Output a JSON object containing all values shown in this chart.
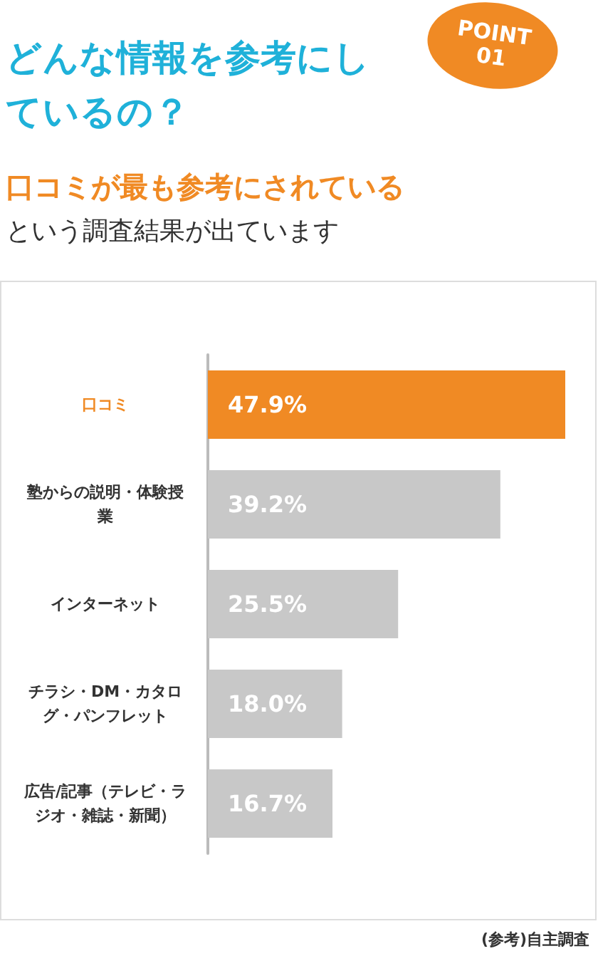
{
  "chart_data": {
    "type": "bar",
    "orientation": "horizontal",
    "title": "どんな情報を参考にしているの？",
    "subtitle": "口コミが最も参考にされている",
    "annotations": [
      "POINT\n01",
      "という調査結果が出ています",
      "(参考)自主調査"
    ],
    "categories": [
      "口コミ",
      "塾からの説明・体験授業",
      "インターネット",
      "チラシ・DM・カタログ・パンフレット",
      "広告/記事（テレビ・ラジオ・雑誌・新聞）"
    ],
    "values": [
      47.9,
      39.2,
      25.5,
      18.0,
      16.7
    ],
    "value_labels": [
      "47.9%",
      "39.2%",
      "25.5%",
      "18.0%",
      "16.7%"
    ],
    "colors": [
      "#f08a24",
      "#c8c8c8",
      "#c8c8c8",
      "#c8c8c8",
      "#c8c8c8"
    ],
    "grid": false
  }
}
